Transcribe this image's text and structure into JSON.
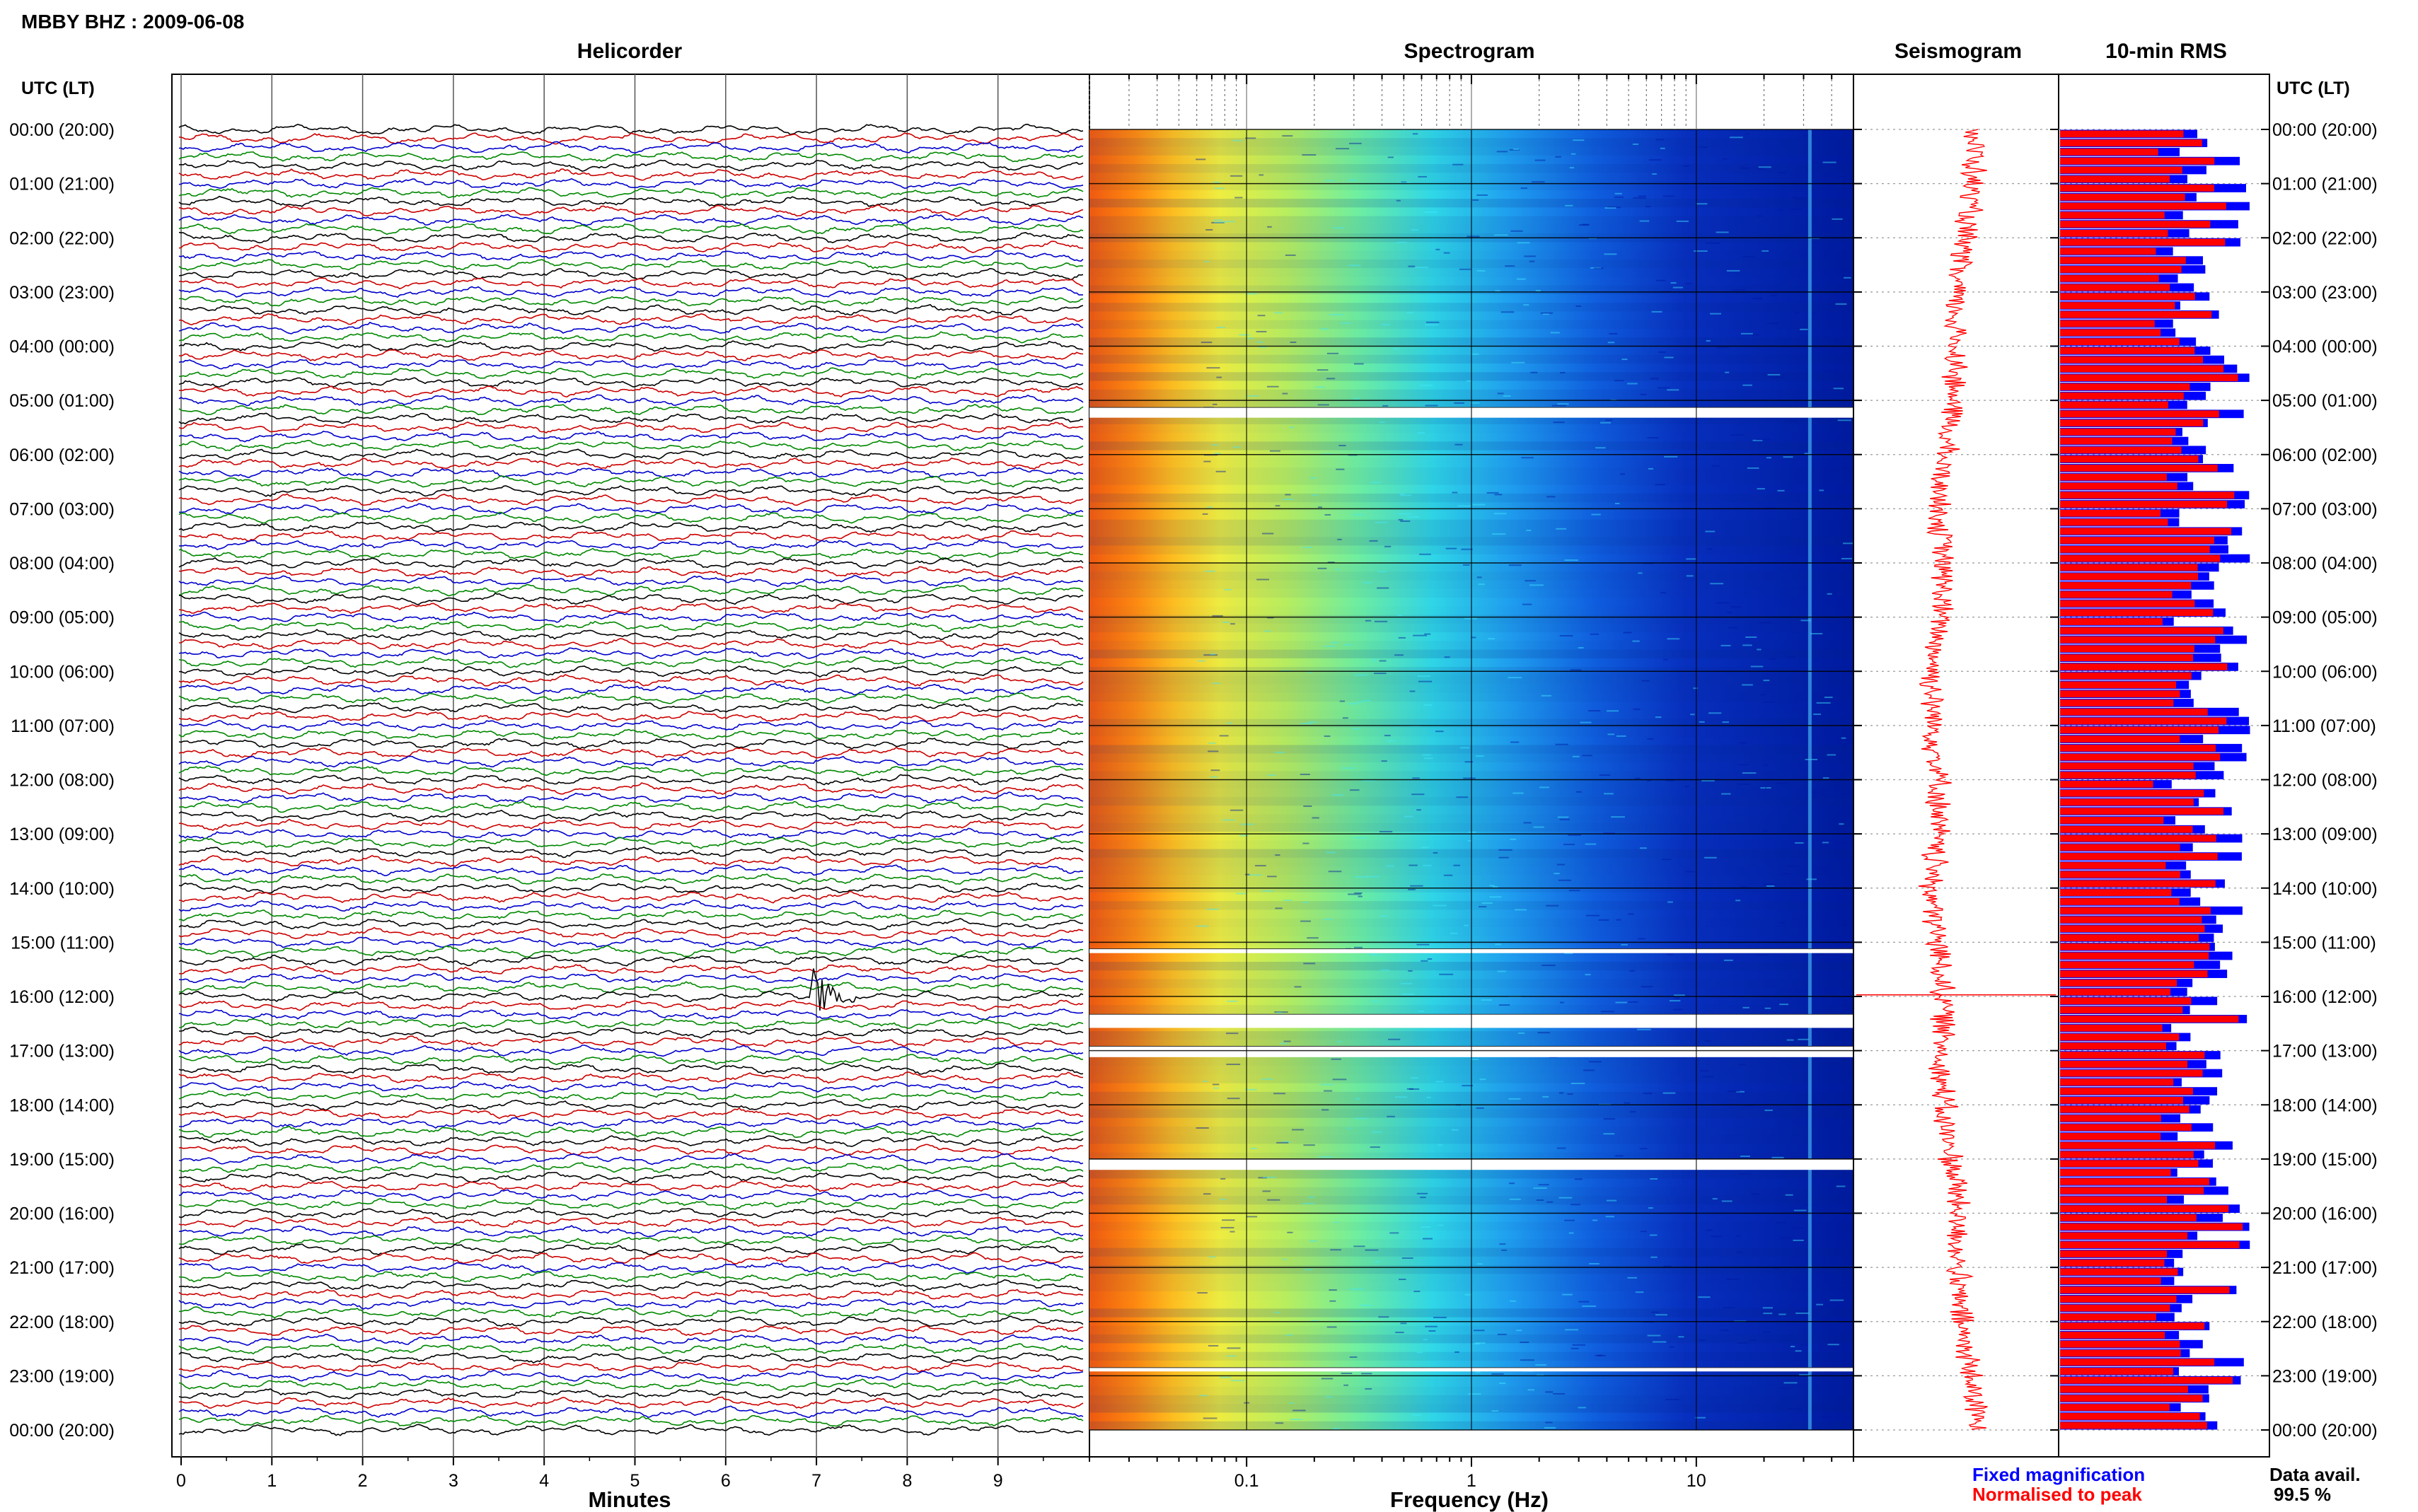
{
  "chart_data": {
    "type": "seismic-daily-overview",
    "title": "MBBY BHZ : 2009-06-08",
    "time_axis_label": "UTC (LT)",
    "time_labels": [
      "00:00 (20:00)",
      "01:00 (21:00)",
      "02:00 (22:00)",
      "03:00 (23:00)",
      "04:00 (00:00)",
      "05:00 (01:00)",
      "06:00 (02:00)",
      "07:00 (03:00)",
      "08:00 (04:00)",
      "09:00 (05:00)",
      "10:00 (06:00)",
      "11:00 (07:00)",
      "12:00 (08:00)",
      "13:00 (09:00)",
      "14:00 (10:00)",
      "15:00 (11:00)",
      "16:00 (12:00)",
      "17:00 (13:00)",
      "18:00 (14:00)",
      "19:00 (15:00)",
      "20:00 (16:00)",
      "21:00 (17:00)",
      "22:00 (18:00)",
      "23:00 (19:00)",
      "00:00 (20:00)"
    ],
    "panels": {
      "helicorder": {
        "title": "Helicorder",
        "xlabel": "Minutes",
        "x_ticks": [
          "0",
          "1",
          "2",
          "3",
          "4",
          "5",
          "6",
          "7",
          "8",
          "9"
        ],
        "x_range": [
          0,
          10
        ],
        "lines_per_hour": 6,
        "trace_colors": [
          "#000000",
          "#cc0000",
          "#0000cc",
          "#008800"
        ],
        "event": {
          "hour": 15.97,
          "minute": 7.0
        }
      },
      "spectrogram": {
        "title": "Spectrogram",
        "xlabel": "Frequency (Hz)",
        "x_scale": "log",
        "x_range": [
          0.02,
          50
        ],
        "x_ticks": [
          "0.1",
          "1",
          "10"
        ],
        "gaps_hours": [
          [
            5.13,
            5.32
          ],
          [
            15.12,
            15.2
          ],
          [
            16.33,
            16.58
          ],
          [
            16.92,
            17.12
          ],
          [
            19.0,
            19.2
          ],
          [
            22.85,
            22.92
          ]
        ]
      },
      "seismogram": {
        "title": "Seismogram",
        "trace_color": "#ff0000"
      },
      "rms": {
        "title": "10-min RMS",
        "x_range": [
          0,
          1
        ],
        "series": [
          {
            "name": "Fixed magnification",
            "color": "#0000ff"
          },
          {
            "name": "Normalised to peak",
            "color": "#ff0000"
          }
        ],
        "data_avail_label": "Data avail.",
        "data_avail_value": "99.5 %"
      }
    }
  }
}
